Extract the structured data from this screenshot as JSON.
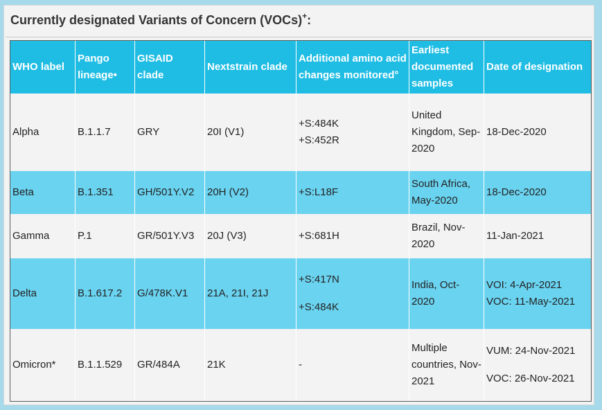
{
  "title": {
    "text": "Currently designated Variants of Concern (VOCs)",
    "sup": "+",
    "suffix": ":"
  },
  "headers": [
    "WHO label",
    "Pango lineage•",
    "GISAID clade",
    "Nextstrain clade",
    "Additional amino acid changes monitored°",
    "Earliest documented samples",
    "Date of designation"
  ],
  "rows": [
    {
      "who": "Alpha",
      "pango": "B.1.1.7",
      "gisaid": "GRY",
      "nextstrain": "20I (V1)",
      "changes": [
        "+S:484K",
        "+S:452R"
      ],
      "earliest": "United Kingdom, Sep-2020",
      "designation": [
        "18-Dec-2020"
      ]
    },
    {
      "who": "Beta",
      "pango": "B.1.351",
      "gisaid": "GH/501Y.V2",
      "nextstrain": "20H (V2)",
      "changes": [
        "+S:L18F"
      ],
      "earliest": "South Africa, May-2020",
      "designation": [
        "18-Dec-2020"
      ]
    },
    {
      "who": "Gamma",
      "pango": "P.1",
      "gisaid": "GR/501Y.V3",
      "nextstrain": "20J (V3)",
      "changes": [
        "+S:681H"
      ],
      "earliest": "Brazil, Nov-2020",
      "designation": [
        "11-Jan-2021"
      ]
    },
    {
      "who": "Delta",
      "pango": "B.1.617.2",
      "gisaid": "G/478K.V1",
      "nextstrain": "21A, 21I, 21J",
      "changes": [
        "+S:417N",
        "+S:484K"
      ],
      "earliest": "India, Oct-2020",
      "designation": [
        "VOI: 4-Apr-2021",
        "VOC: 11-May-2021"
      ]
    },
    {
      "who": "Omicron*",
      "pango": "B.1.1.529",
      "gisaid": "GR/484A",
      "nextstrain": "21K",
      "changes": [
        "-"
      ],
      "earliest": "Multiple countries, Nov-2021",
      "designation": [
        "VUM: 24-Nov-2021",
        "VOC: 26-Nov-2021"
      ]
    }
  ]
}
